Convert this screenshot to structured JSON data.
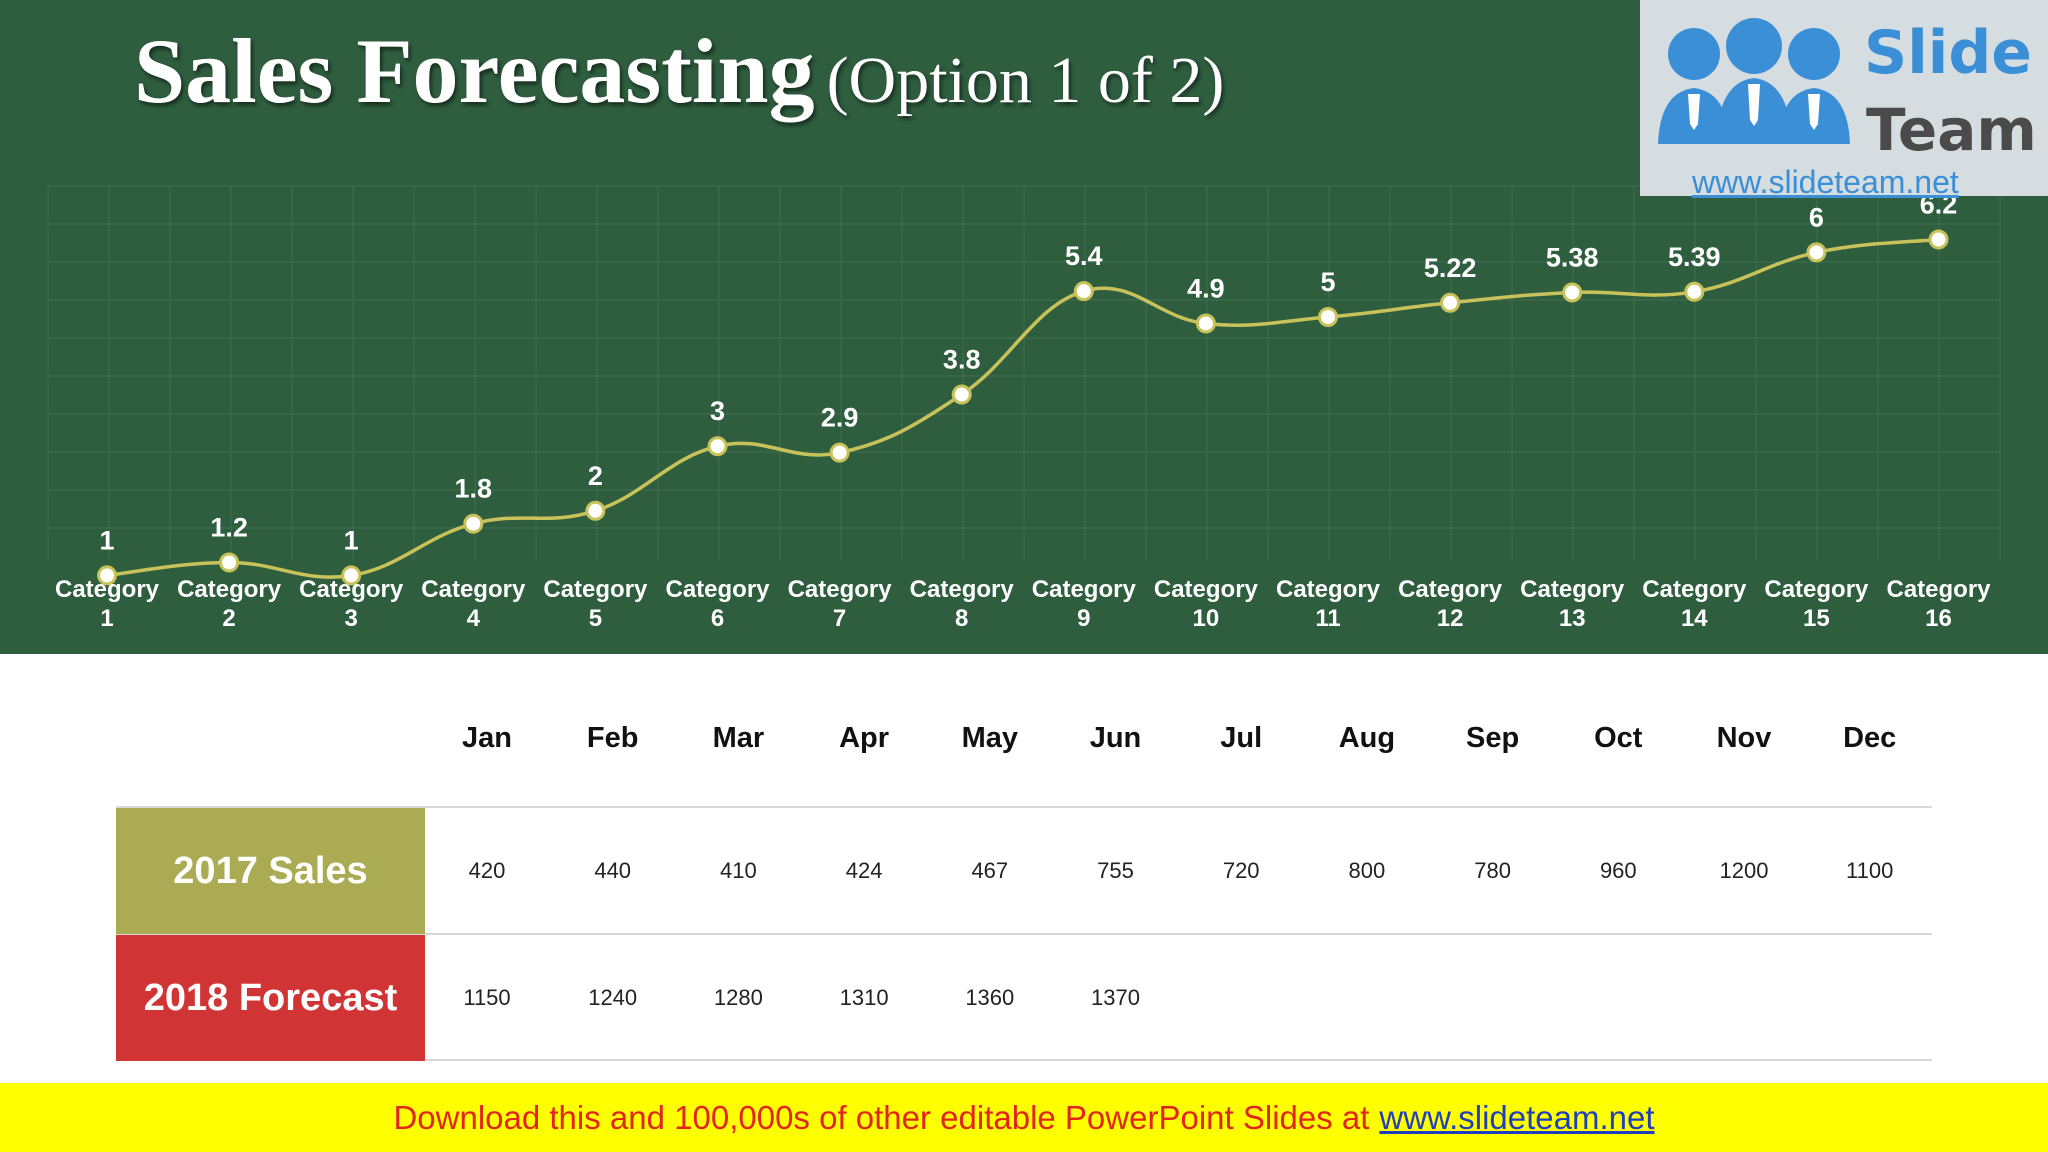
{
  "title": {
    "main": "Sales Forecasting",
    "sub": "(Option 1 of 2)"
  },
  "logo": {
    "line1": "Slide",
    "line2": "Team",
    "url": "www.slideteam.net"
  },
  "colors": {
    "panel": "#2f5e3f",
    "line": "#c8c25a",
    "sales_label": "#aaab52",
    "forecast_label": "#d13434",
    "banner": "#ffff00"
  },
  "chart_data": {
    "type": "line",
    "categories": [
      [
        "Category",
        "1"
      ],
      [
        "Category",
        "2"
      ],
      [
        "Category",
        "3"
      ],
      [
        "Category",
        "4"
      ],
      [
        "Category",
        "5"
      ],
      [
        "Category",
        "6"
      ],
      [
        "Category",
        "7"
      ],
      [
        "Category",
        "8"
      ],
      [
        "Category",
        "9"
      ],
      [
        "Category",
        "10"
      ],
      [
        "Category",
        "11"
      ],
      [
        "Category",
        "12"
      ],
      [
        "Category",
        "13"
      ],
      [
        "Category",
        "14"
      ],
      [
        "Category",
        "15"
      ],
      [
        "Category",
        "16"
      ]
    ],
    "values": [
      1,
      1.2,
      1,
      1.8,
      2,
      3,
      2.9,
      3.8,
      5.4,
      4.9,
      5,
      5.22,
      5.38,
      5.39,
      6,
      6.2
    ],
    "value_labels": [
      "1",
      "1.2",
      "1",
      "1.8",
      "2",
      "3",
      "2.9",
      "3.8",
      "5.4",
      "4.9",
      "5",
      "5.22",
      "5.38",
      "5.39",
      "6",
      "6.2"
    ],
    "smooth": true,
    "grid": true,
    "legend": "none",
    "title": "",
    "xlabel": "",
    "ylabel": "",
    "ylim": [
      0,
      7
    ]
  },
  "table": {
    "months": [
      "Jan",
      "Feb",
      "Mar",
      "Apr",
      "May",
      "Jun",
      "Jul",
      "Aug",
      "Sep",
      "Oct",
      "Nov",
      "Dec"
    ],
    "rows": [
      {
        "label": "2017 Sales",
        "values": [
          "420",
          "440",
          "410",
          "424",
          "467",
          "755",
          "720",
          "800",
          "780",
          "960",
          "1200",
          "1100"
        ]
      },
      {
        "label": "2018 Forecast",
        "values": [
          "1150",
          "1240",
          "1280",
          "1310",
          "1360",
          "1370",
          "",
          "",
          "",
          "",
          "",
          ""
        ]
      }
    ]
  },
  "banner": {
    "text": "Download this and 100,000s of other editable PowerPoint Slides at",
    "link": "www.slideteam.net"
  }
}
